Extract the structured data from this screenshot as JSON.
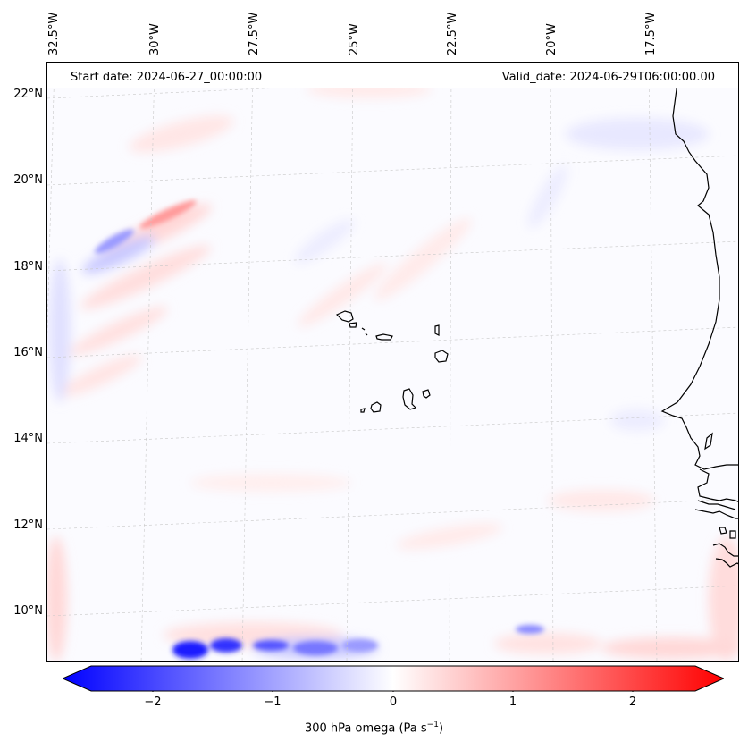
{
  "map": {
    "title_left": "Start date: 2024-06-27_00:00:00",
    "title_right": "Valid_date: 2024-06-29T06:00:00.00",
    "lon_labels": [
      "32.5°W",
      "30°W",
      "27.5°W",
      "25°W",
      "22.5°W",
      "20°W",
      "17.5°W"
    ],
    "lat_labels": [
      "22°N",
      "20°N",
      "18°N",
      "16°N",
      "14°N",
      "12°N",
      "10°N"
    ],
    "region": "Cabo Verde and West African coast"
  },
  "colorbar": {
    "label_prefix": "300 hPa omega (Pa s",
    "label_exp": "−1",
    "label_suffix": ")",
    "ticks": [
      "−2",
      "−1",
      "0",
      "1",
      "2"
    ],
    "min": -2.7,
    "max": 2.7,
    "low_color": "#0000ff",
    "mid_color": "#ffffff",
    "high_color": "#ff0000"
  }
}
